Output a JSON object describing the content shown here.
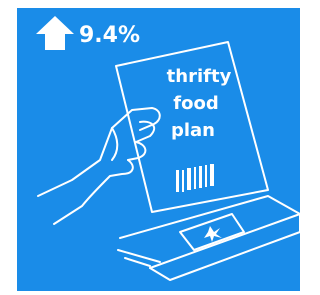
{
  "badge": {
    "text": "9.4%"
  },
  "card": {
    "lines": [
      "thrifty",
      "food",
      "plan"
    ]
  }
}
